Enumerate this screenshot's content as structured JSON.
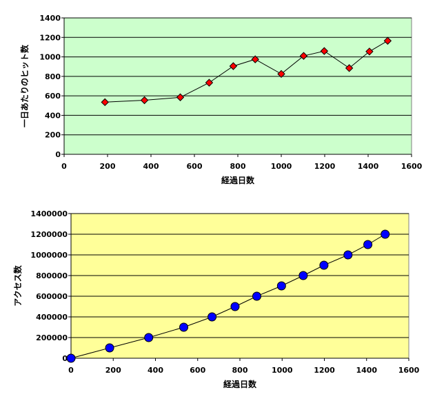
{
  "chart_data": [
    {
      "type": "scatter",
      "xlabel": "経過日数",
      "ylabel": "一日あたりのヒット数",
      "xlim": [
        0,
        1600
      ],
      "ylim": [
        0,
        1400
      ],
      "xticks": [
        "0",
        "200",
        "400",
        "600",
        "800",
        "1000",
        "1200",
        "1400",
        "1600"
      ],
      "yticks": [
        "0",
        "200",
        "400",
        "600",
        "800",
        "1000",
        "1200",
        "1400"
      ],
      "grid": "horizontal",
      "legend": "none",
      "plot_bg": "#ccffcc",
      "marker": "diamond",
      "marker_color": "#ff0000",
      "points": [
        {
          "x": 188,
          "y": 535
        },
        {
          "x": 370,
          "y": 555
        },
        {
          "x": 535,
          "y": 585
        },
        {
          "x": 668,
          "y": 735
        },
        {
          "x": 779,
          "y": 905
        },
        {
          "x": 880,
          "y": 975
        },
        {
          "x": 1000,
          "y": 825
        },
        {
          "x": 1103,
          "y": 1010
        },
        {
          "x": 1198,
          "y": 1060
        },
        {
          "x": 1313,
          "y": 885
        },
        {
          "x": 1406,
          "y": 1055
        },
        {
          "x": 1490,
          "y": 1165
        }
      ]
    },
    {
      "type": "scatter",
      "xlabel": "経過日数",
      "ylabel": "アクセス数",
      "xlim": [
        0,
        1600
      ],
      "ylim": [
        0,
        1400000
      ],
      "xticks": [
        "0",
        "200",
        "400",
        "600",
        "800",
        "1000",
        "1200",
        "1400",
        "1600"
      ],
      "yticks": [
        "0",
        "200000",
        "400000",
        "600000",
        "800000",
        "1000000",
        "1200000",
        "1400000"
      ],
      "grid": "horizontal",
      "legend": "none",
      "plot_bg": "#ffff99",
      "marker": "circle",
      "marker_color": "#0000ff",
      "points": [
        {
          "x": 0,
          "y": 0
        },
        {
          "x": 183,
          "y": 100000
        },
        {
          "x": 368,
          "y": 200000
        },
        {
          "x": 534,
          "y": 300000
        },
        {
          "x": 668,
          "y": 400000
        },
        {
          "x": 777,
          "y": 500000
        },
        {
          "x": 880,
          "y": 600000
        },
        {
          "x": 997,
          "y": 700000
        },
        {
          "x": 1100,
          "y": 800000
        },
        {
          "x": 1198,
          "y": 900000
        },
        {
          "x": 1312,
          "y": 1000000
        },
        {
          "x": 1406,
          "y": 1100000
        },
        {
          "x": 1488,
          "y": 1200000
        }
      ]
    }
  ]
}
